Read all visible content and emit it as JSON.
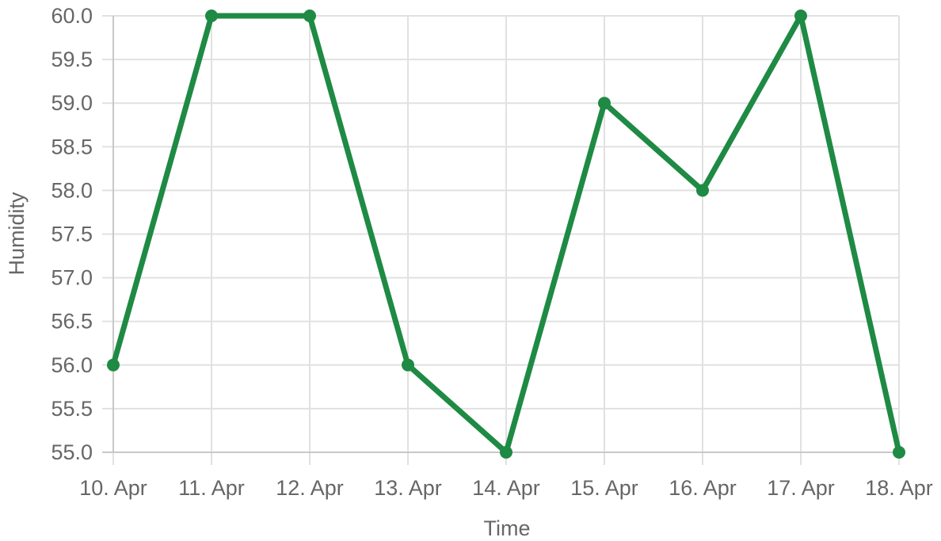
{
  "chart_data": {
    "type": "line",
    "xlabel": "Time",
    "ylabel": "Humidity",
    "categories": [
      "10. Apr",
      "11. Apr",
      "12. Apr",
      "13. Apr",
      "14. Apr",
      "15. Apr",
      "16. Apr",
      "17. Apr",
      "18. Apr"
    ],
    "series": [
      {
        "values": [
          56,
          60,
          60,
          56,
          55,
          59,
          58,
          60,
          55
        ],
        "color": "#1e8a44"
      }
    ],
    "ylim": [
      55,
      60
    ],
    "yticks": [
      "55.0",
      "55.5",
      "56.0",
      "56.5",
      "57.0",
      "57.5",
      "58.0",
      "58.5",
      "59.0",
      "59.5",
      "60.0"
    ],
    "grid": true,
    "legend": "none"
  }
}
